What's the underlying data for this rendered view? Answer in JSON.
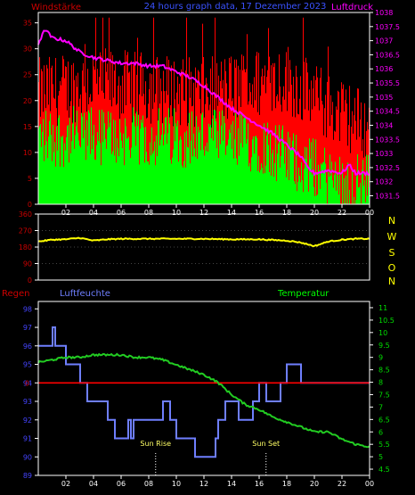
{
  "header": {
    "wind_label": "Windstärke",
    "title": "24 hours graph data, 17 Dezember 2023",
    "pressure_label": "Luftdruck"
  },
  "mid": {
    "compass": [
      "N",
      "W",
      "S",
      "O",
      "N"
    ]
  },
  "bottom": {
    "rain_label": "Regen",
    "humidity_label": "Luftfeuchte",
    "temp_label": "Temperatur",
    "sunrise_label": "Sun Rise",
    "sunset_label": "Sun Set"
  },
  "colors": {
    "gust": "#ff0000",
    "wind": "#00ff00",
    "pressure": "#ff00ff",
    "direction": "#ffff00",
    "humidity": "#6f7fff",
    "temperature": "#22cc22",
    "rain": "#ff0000",
    "axis_left": "#cc0000",
    "axis_right": "#ff00ff",
    "hum_axis": "#4444ff",
    "temp_axis": "#00dd00"
  },
  "chart_data": [
    {
      "type": "bar",
      "name": "wind_pressure",
      "title": "24 hours graph data, 17 Dezember 2023",
      "x_ticks": [
        "02",
        "04",
        "06",
        "08",
        "10",
        "12",
        "14",
        "16",
        "18",
        "20",
        "22",
        "00"
      ],
      "y_left_ticks": [
        0,
        5,
        10,
        15,
        20,
        25,
        30,
        35
      ],
      "y_left_range": [
        0,
        37
      ],
      "y_right_ticks": [
        1031.5,
        1032,
        1032.5,
        1033,
        1033.5,
        1034,
        1034.5,
        1035,
        1035.5,
        1036,
        1036.5,
        1037,
        1037.5,
        1038
      ],
      "y_right_range": [
        1031.2,
        1038
      ],
      "gust_profile": [
        [
          0,
          20
        ],
        [
          4,
          22
        ],
        [
          8,
          21
        ],
        [
          12,
          20
        ],
        [
          16,
          22
        ],
        [
          18,
          23
        ],
        [
          20,
          19
        ],
        [
          22,
          16
        ],
        [
          23,
          15
        ],
        [
          24,
          13
        ]
      ],
      "wind_profile": [
        [
          0,
          13
        ],
        [
          4,
          13
        ],
        [
          8,
          13
        ],
        [
          12,
          13
        ],
        [
          14,
          12
        ],
        [
          16,
          12
        ],
        [
          18,
          9
        ],
        [
          20,
          7
        ],
        [
          22,
          4
        ],
        [
          23,
          4
        ],
        [
          24,
          4
        ]
      ],
      "pressure": [
        [
          0,
          1036.9
        ],
        [
          0.5,
          1037.4
        ],
        [
          1,
          1037.1
        ],
        [
          2,
          1037.0
        ],
        [
          3,
          1036.6
        ],
        [
          4,
          1036.4
        ],
        [
          5,
          1036.3
        ],
        [
          6,
          1036.2
        ],
        [
          7,
          1036.2
        ],
        [
          8,
          1036.1
        ],
        [
          9,
          1036.1
        ],
        [
          10,
          1035.9
        ],
        [
          11,
          1035.7
        ],
        [
          12,
          1035.4
        ],
        [
          13,
          1035.0
        ],
        [
          14,
          1034.6
        ],
        [
          15,
          1034.3
        ],
        [
          16,
          1034.0
        ],
        [
          17,
          1033.7
        ],
        [
          18,
          1033.3
        ],
        [
          19,
          1032.9
        ],
        [
          19.5,
          1032.5
        ],
        [
          20,
          1032.3
        ],
        [
          21,
          1032.4
        ],
        [
          22,
          1032.3
        ],
        [
          22.5,
          1032.6
        ],
        [
          23,
          1032.3
        ],
        [
          24,
          1032.3
        ]
      ]
    },
    {
      "type": "line",
      "name": "wind_direction",
      "y_ticks": [
        0,
        90,
        180,
        270,
        360
      ],
      "y_range": [
        0,
        360
      ],
      "values": [
        [
          0,
          210
        ],
        [
          1,
          220
        ],
        [
          2,
          222
        ],
        [
          3,
          230
        ],
        [
          4,
          215
        ],
        [
          5,
          222
        ],
        [
          6,
          225
        ],
        [
          8,
          225
        ],
        [
          10,
          225
        ],
        [
          12,
          225
        ],
        [
          14,
          222
        ],
        [
          16,
          222
        ],
        [
          18,
          215
        ],
        [
          19,
          205
        ],
        [
          20,
          185
        ],
        [
          21,
          210
        ],
        [
          22,
          220
        ],
        [
          23,
          225
        ],
        [
          24,
          225
        ]
      ]
    },
    {
      "type": "line",
      "name": "humidity_temperature",
      "x_ticks": [
        "02",
        "04",
        "06",
        "08",
        "10",
        "12",
        "14",
        "16",
        "18",
        "20",
        "22",
        "00"
      ],
      "y_left_ticks": [
        89,
        90,
        91,
        92,
        93,
        94,
        95,
        96,
        97,
        98
      ],
      "y_left_range": [
        89,
        98.4
      ],
      "y_right_ticks": [
        4.5,
        5,
        5.5,
        6,
        6.5,
        7,
        7.5,
        8,
        8.5,
        9,
        9.5,
        10,
        10.5,
        11
      ],
      "y_right_range": [
        4.25,
        11.25
      ],
      "rain_value": 0,
      "humidity_steps": [
        [
          0,
          96
        ],
        [
          1,
          97
        ],
        [
          1.2,
          96
        ],
        [
          2,
          95
        ],
        [
          3,
          94
        ],
        [
          3.5,
          93
        ],
        [
          5,
          92
        ],
        [
          5.5,
          91
        ],
        [
          6.5,
          92
        ],
        [
          6.7,
          91
        ],
        [
          6.9,
          92
        ],
        [
          7.5,
          92
        ],
        [
          8.5,
          92
        ],
        [
          9,
          93
        ],
        [
          9.5,
          92
        ],
        [
          10,
          91
        ],
        [
          10.5,
          91
        ],
        [
          11,
          91
        ],
        [
          11.3,
          90
        ],
        [
          12.5,
          90
        ],
        [
          12.8,
          91
        ],
        [
          13,
          92
        ],
        [
          13.5,
          93
        ],
        [
          14.5,
          92
        ],
        [
          15,
          92
        ],
        [
          15.5,
          93
        ],
        [
          16,
          94
        ],
        [
          16.5,
          93
        ],
        [
          17,
          93
        ],
        [
          17.5,
          94
        ],
        [
          18,
          95
        ],
        [
          19,
          94
        ],
        [
          24,
          94
        ]
      ],
      "temperature": [
        [
          0,
          8.8
        ],
        [
          1,
          8.9
        ],
        [
          2,
          9.0
        ],
        [
          3,
          9.0
        ],
        [
          4,
          9.1
        ],
        [
          5,
          9.1
        ],
        [
          6,
          9.1
        ],
        [
          7,
          9.0
        ],
        [
          8,
          9.0
        ],
        [
          9,
          8.9
        ],
        [
          10,
          8.7
        ],
        [
          11,
          8.5
        ],
        [
          12,
          8.3
        ],
        [
          13,
          8.0
        ],
        [
          14,
          7.5
        ],
        [
          15,
          7.1
        ],
        [
          16,
          6.9
        ],
        [
          17,
          6.6
        ],
        [
          18,
          6.4
        ],
        [
          19,
          6.2
        ],
        [
          20,
          6.0
        ],
        [
          21,
          6.0
        ],
        [
          22,
          5.7
        ],
        [
          23,
          5.5
        ],
        [
          24,
          5.4
        ]
      ],
      "sunrise_hour": 8.5,
      "sunset_hour": 16.5
    }
  ]
}
